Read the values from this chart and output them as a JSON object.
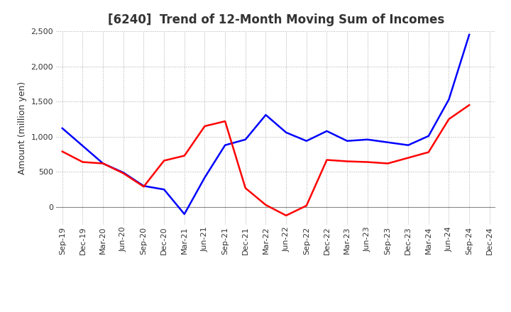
{
  "title": "[6240]  Trend of 12-Month Moving Sum of Incomes",
  "ylabel": "Amount (million yen)",
  "background_color": "#ffffff",
  "grid_color": "#aaaaaa",
  "x_labels": [
    "Sep-19",
    "Dec-19",
    "Mar-20",
    "Jun-20",
    "Sep-20",
    "Dec-20",
    "Mar-21",
    "Jun-21",
    "Sep-21",
    "Dec-21",
    "Mar-22",
    "Jun-22",
    "Sep-22",
    "Dec-22",
    "Mar-23",
    "Jun-23",
    "Sep-23",
    "Dec-23",
    "Mar-24",
    "Jun-24",
    "Sep-24",
    "Dec-24"
  ],
  "ordinary_income": [
    1120,
    870,
    620,
    490,
    300,
    250,
    -100,
    420,
    880,
    960,
    1310,
    1060,
    940,
    1080,
    940,
    960,
    920,
    880,
    1010,
    1530,
    2450,
    null
  ],
  "net_income": [
    790,
    640,
    620,
    480,
    290,
    660,
    730,
    1150,
    1220,
    270,
    30,
    -120,
    20,
    670,
    650,
    640,
    620,
    700,
    780,
    1250,
    1450,
    null
  ],
  "ordinary_color": "#0000ff",
  "net_color": "#ff0000",
  "ylim": [
    -250,
    2500
  ],
  "yticks": [
    0,
    500,
    1000,
    1500,
    2000,
    2500
  ],
  "line_width": 1.8,
  "title_color": "#333333",
  "title_fontsize": 12,
  "tick_fontsize": 8,
  "ylabel_fontsize": 9
}
